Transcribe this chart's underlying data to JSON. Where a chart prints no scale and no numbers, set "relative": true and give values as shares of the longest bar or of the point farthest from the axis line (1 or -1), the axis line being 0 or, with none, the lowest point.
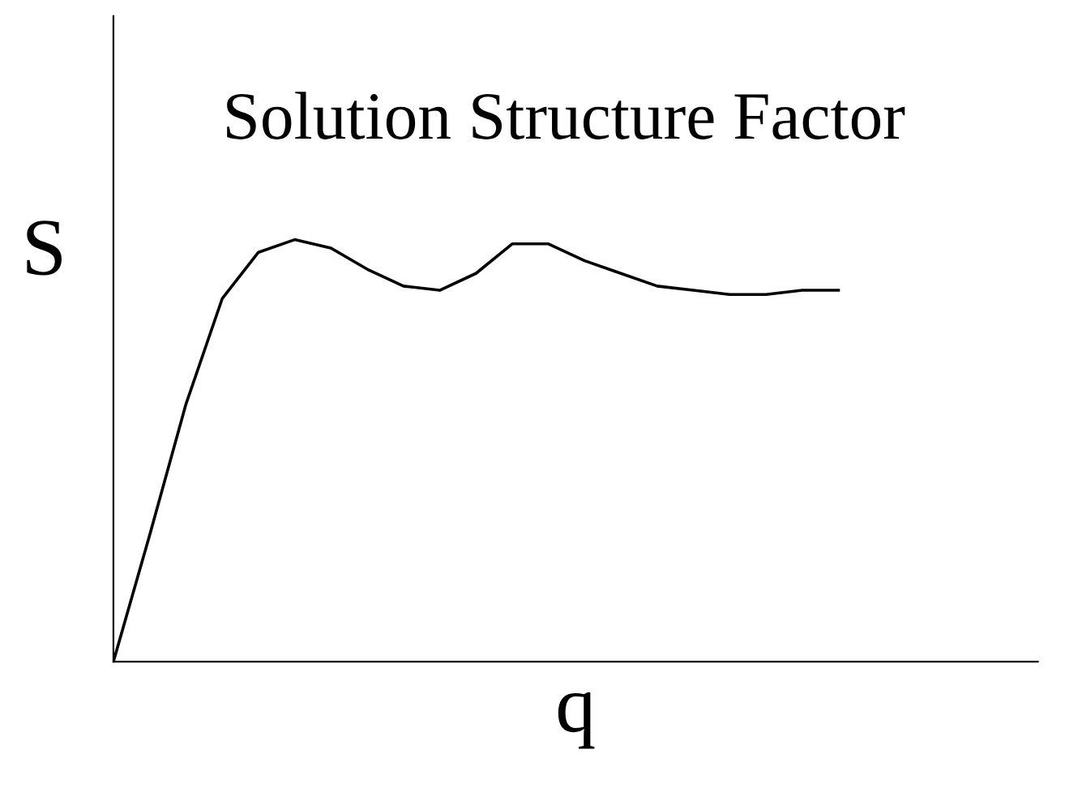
{
  "chart_data": {
    "type": "line",
    "relative": true,
    "title": "Solution Structure Factor",
    "xlabel": "q",
    "ylabel": "S",
    "categories": [
      null,
      null,
      null,
      null,
      null,
      null,
      null,
      null,
      null,
      null,
      null,
      null,
      null,
      null,
      null,
      null,
      null,
      null,
      null,
      null,
      null
    ],
    "series": [
      {
        "color": "#000000",
        "values": [
          0,
          0.3,
          0.61,
          0.86,
          0.97,
          1.0,
          0.98,
          0.93,
          0.89,
          0.88,
          0.92,
          0.99,
          0.99,
          0.95,
          0.92,
          0.89,
          0.88,
          0.87,
          0.87,
          0.88,
          0.88
        ]
      }
    ],
    "grid": false,
    "legend": false,
    "marker": "none",
    "line_style": "solid",
    "tick_labels": false
  }
}
